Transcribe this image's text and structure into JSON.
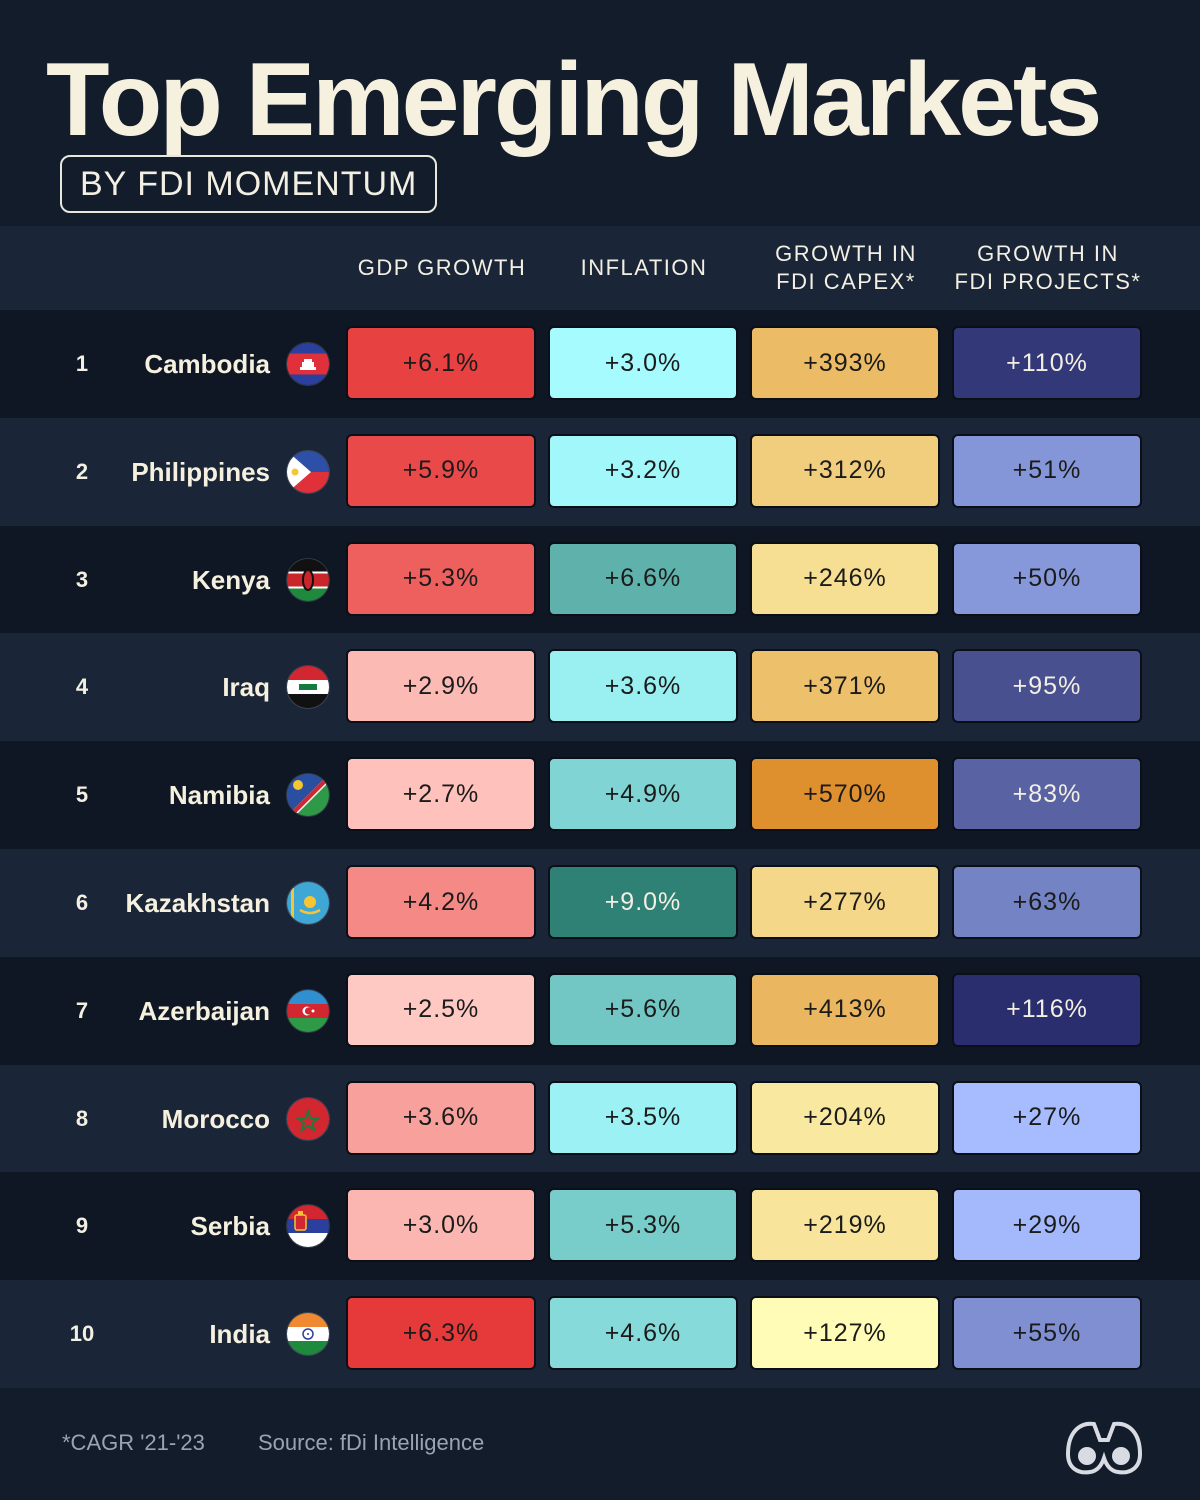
{
  "title": "Top Emerging Markets",
  "subtitle": "BY FDI MOMENTUM",
  "footer": {
    "note": "*CAGR '21-'23",
    "source": "Source: fDi Intelligence"
  },
  "logo_icon": "binoculars-logo-icon",
  "chart_data": {
    "type": "table",
    "columns": [
      "GDP GROWTH",
      "INFLATION",
      "GROWTH IN\nFDI CAPEX*",
      "GROWTH IN\nFDI PROJECTS*"
    ],
    "rows": [
      {
        "rank": "1",
        "country": "Cambodia",
        "flag": "cambodia-flag-icon",
        "values": [
          "+6.1%",
          "+3.0%",
          "+393%",
          "+110%"
        ]
      },
      {
        "rank": "2",
        "country": "Philippines",
        "flag": "philippines-flag-icon",
        "values": [
          "+5.9%",
          "+3.2%",
          "+312%",
          "+51%"
        ]
      },
      {
        "rank": "3",
        "country": "Kenya",
        "flag": "kenya-flag-icon",
        "values": [
          "+5.3%",
          "+6.6%",
          "+246%",
          "+50%"
        ]
      },
      {
        "rank": "4",
        "country": "Iraq",
        "flag": "iraq-flag-icon",
        "values": [
          "+2.9%",
          "+3.6%",
          "+371%",
          "+95%"
        ]
      },
      {
        "rank": "5",
        "country": "Namibia",
        "flag": "namibia-flag-icon",
        "values": [
          "+2.7%",
          "+4.9%",
          "+570%",
          "+83%"
        ]
      },
      {
        "rank": "6",
        "country": "Kazakhstan",
        "flag": "kazakhstan-flag-icon",
        "values": [
          "+4.2%",
          "+9.0%",
          "+277%",
          "+63%"
        ]
      },
      {
        "rank": "7",
        "country": "Azerbaijan",
        "flag": "azerbaijan-flag-icon",
        "values": [
          "+2.5%",
          "+5.6%",
          "+413%",
          "+116%"
        ]
      },
      {
        "rank": "8",
        "country": "Morocco",
        "flag": "morocco-flag-icon",
        "values": [
          "+3.6%",
          "+3.5%",
          "+204%",
          "+27%"
        ]
      },
      {
        "rank": "9",
        "country": "Serbia",
        "flag": "serbia-flag-icon",
        "values": [
          "+3.0%",
          "+5.3%",
          "+219%",
          "+29%"
        ]
      },
      {
        "rank": "10",
        "country": "India",
        "flag": "india-flag-icon",
        "values": [
          "+6.3%",
          "+4.6%",
          "+127%",
          "+55%"
        ]
      }
    ],
    "colors": {
      "gdp": [
        "#ffc9c3",
        "#e63a3a"
      ],
      "inflation": [
        "#a6fbff",
        "#2f8075"
      ],
      "capex": [
        "#fffcb8",
        "#de8f2e"
      ],
      "projects": [
        "#a6bcff",
        "#2b2e6e"
      ]
    }
  }
}
